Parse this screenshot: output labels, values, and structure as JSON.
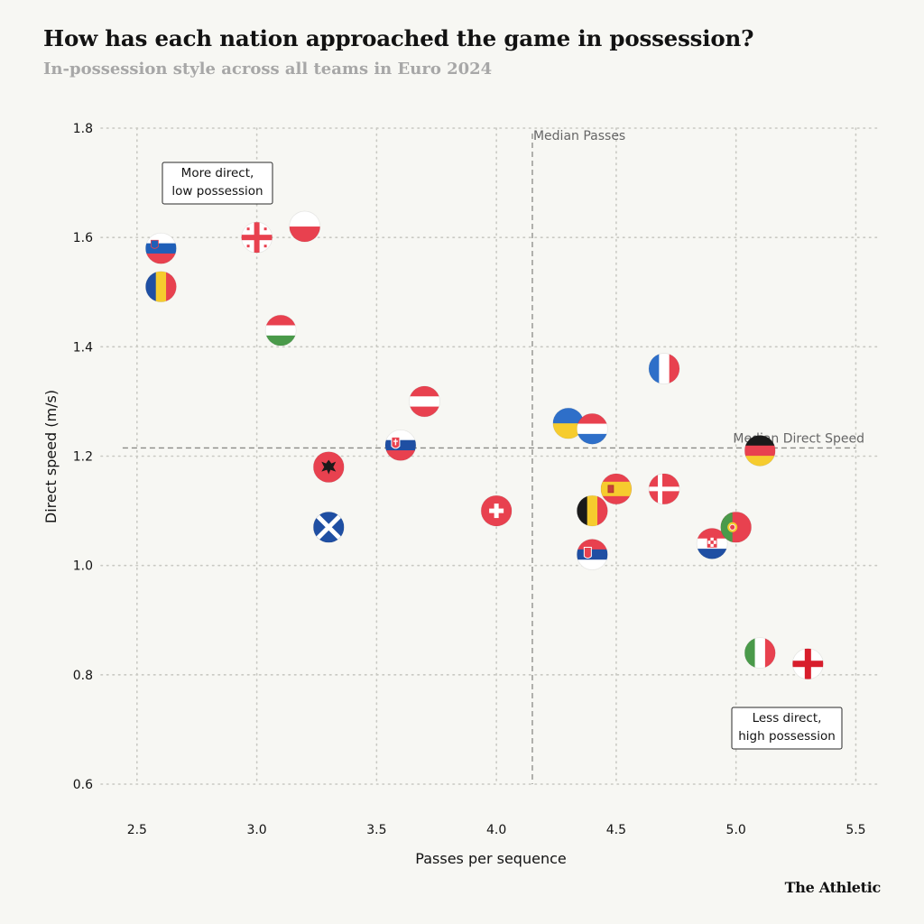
{
  "title": "How has each nation approached the game in possession?",
  "subtitle": "In-possession style across all teams in Euro 2024",
  "brand": "The Athletic",
  "chart_data": {
    "type": "scatter",
    "xlabel": "Passes per sequence",
    "ylabel": "Direct speed (m/s)",
    "xlim": [
      2.35,
      5.6
    ],
    "ylim": [
      0.6,
      1.8
    ],
    "xticks": [
      2.5,
      3.0,
      3.5,
      4.0,
      4.5,
      5.0,
      5.5
    ],
    "yticks": [
      0.6,
      0.8,
      1.0,
      1.2,
      1.4,
      1.6,
      1.8
    ],
    "grid": true,
    "reference_lines": [
      {
        "label": "Median Passes",
        "axis": "x",
        "value": 4.15
      },
      {
        "label": "Median Direct Speed",
        "axis": "y",
        "value": 1.215
      }
    ],
    "annotations": [
      {
        "lines": [
          "More direct,",
          "low possession"
        ],
        "corner": "top-left"
      },
      {
        "lines": [
          "Less direct,",
          "high possession"
        ],
        "corner": "bottom-right"
      }
    ],
    "points": [
      {
        "flag": "slovenia",
        "x": 2.6,
        "y": 1.58
      },
      {
        "flag": "romania",
        "x": 2.6,
        "y": 1.51
      },
      {
        "flag": "georgia",
        "x": 3.0,
        "y": 1.6
      },
      {
        "flag": "poland",
        "x": 3.2,
        "y": 1.62
      },
      {
        "flag": "hungary",
        "x": 3.1,
        "y": 1.43
      },
      {
        "flag": "austria",
        "x": 3.7,
        "y": 1.3
      },
      {
        "flag": "slovakia",
        "x": 3.6,
        "y": 1.22
      },
      {
        "flag": "albania",
        "x": 3.3,
        "y": 1.18
      },
      {
        "flag": "scotland",
        "x": 3.3,
        "y": 1.07
      },
      {
        "flag": "switzerland",
        "x": 4.0,
        "y": 1.1
      },
      {
        "flag": "ukraine",
        "x": 4.3,
        "y": 1.26
      },
      {
        "flag": "netherlands",
        "x": 4.4,
        "y": 1.25
      },
      {
        "flag": "france",
        "x": 4.7,
        "y": 1.36
      },
      {
        "flag": "germany",
        "x": 5.1,
        "y": 1.21
      },
      {
        "flag": "spain",
        "x": 4.5,
        "y": 1.14
      },
      {
        "flag": "denmark",
        "x": 4.7,
        "y": 1.14
      },
      {
        "flag": "belgium",
        "x": 4.4,
        "y": 1.1
      },
      {
        "flag": "serbia",
        "x": 4.4,
        "y": 1.02
      },
      {
        "flag": "croatia",
        "x": 4.9,
        "y": 1.04
      },
      {
        "flag": "portugal",
        "x": 5.0,
        "y": 1.07
      },
      {
        "flag": "italy",
        "x": 5.1,
        "y": 0.84
      },
      {
        "flag": "england",
        "x": 5.3,
        "y": 0.82
      }
    ]
  }
}
